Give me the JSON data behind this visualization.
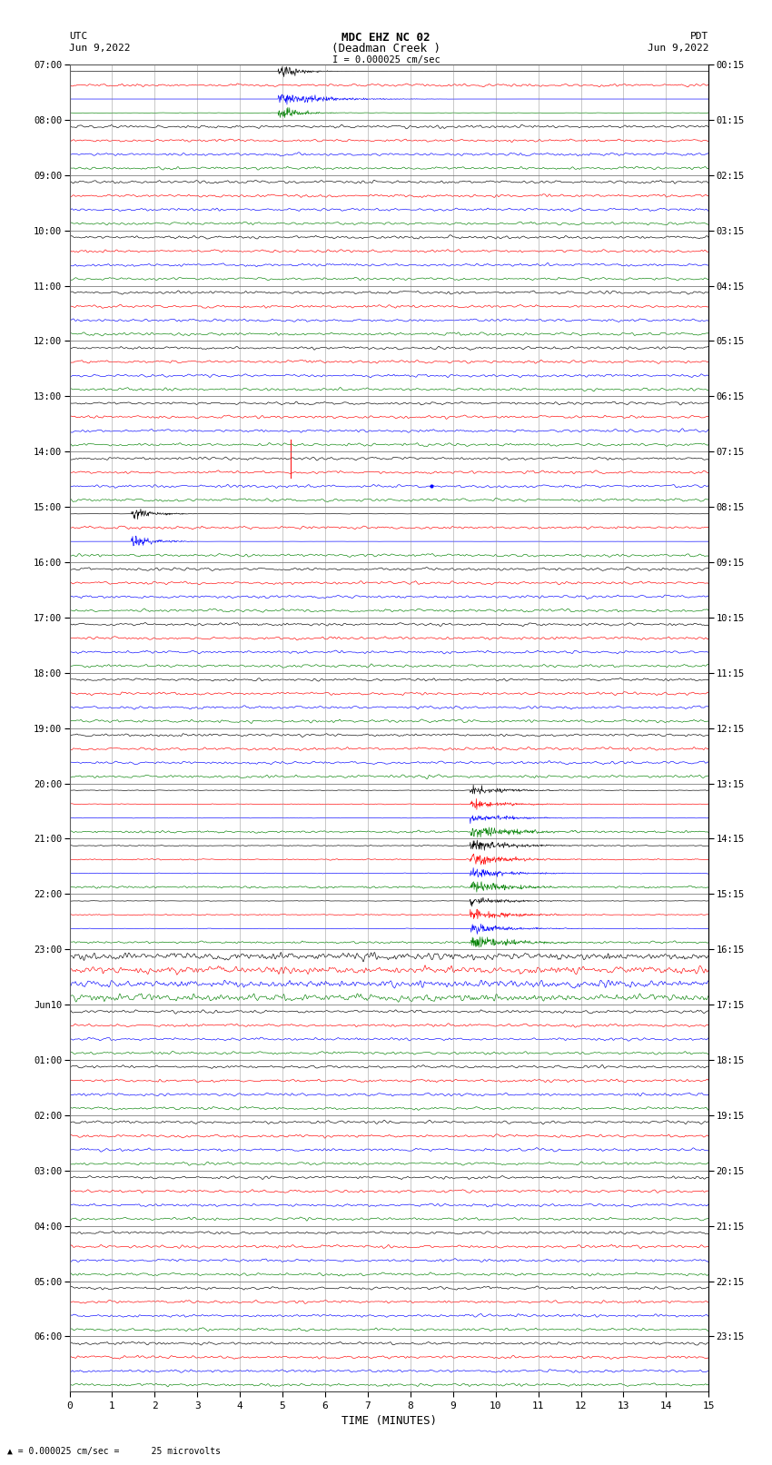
{
  "title_line1": "MDC EHZ NC 02",
  "title_line2": "(Deadman Creek )",
  "scale_text": "I = 0.000025 cm/sec",
  "bottom_scale_text": "= 0.000025 cm/sec =      25 microvolts",
  "left_label": "UTC",
  "left_date": "Jun 9,2022",
  "right_label": "PDT",
  "right_date": "Jun 9,2022",
  "xlabel": "TIME (MINUTES)",
  "xlim": [
    0,
    15
  ],
  "xticks": [
    0,
    1,
    2,
    3,
    4,
    5,
    6,
    7,
    8,
    9,
    10,
    11,
    12,
    13,
    14,
    15
  ],
  "utc_hour_labels": [
    "07:00",
    "08:00",
    "09:00",
    "10:00",
    "11:00",
    "12:00",
    "13:00",
    "14:00",
    "15:00",
    "16:00",
    "17:00",
    "18:00",
    "19:00",
    "20:00",
    "21:00",
    "22:00",
    "23:00",
    "Jun10",
    "01:00",
    "02:00",
    "03:00",
    "04:00",
    "05:00",
    "06:00"
  ],
  "pdt_hour_labels": [
    "00:15",
    "01:15",
    "02:15",
    "03:15",
    "04:15",
    "05:15",
    "06:15",
    "07:15",
    "08:15",
    "09:15",
    "10:15",
    "11:15",
    "12:15",
    "13:15",
    "14:15",
    "15:15",
    "16:15",
    "17:15",
    "18:15",
    "19:15",
    "20:15",
    "21:15",
    "22:15",
    "23:15"
  ],
  "trace_colors": [
    "black",
    "red",
    "blue",
    "green"
  ],
  "n_hours": 24,
  "traces_per_hour": 4,
  "bg_color": "white",
  "grid_color": "#888888",
  "noise_scale_base": 0.012,
  "seed": 42
}
